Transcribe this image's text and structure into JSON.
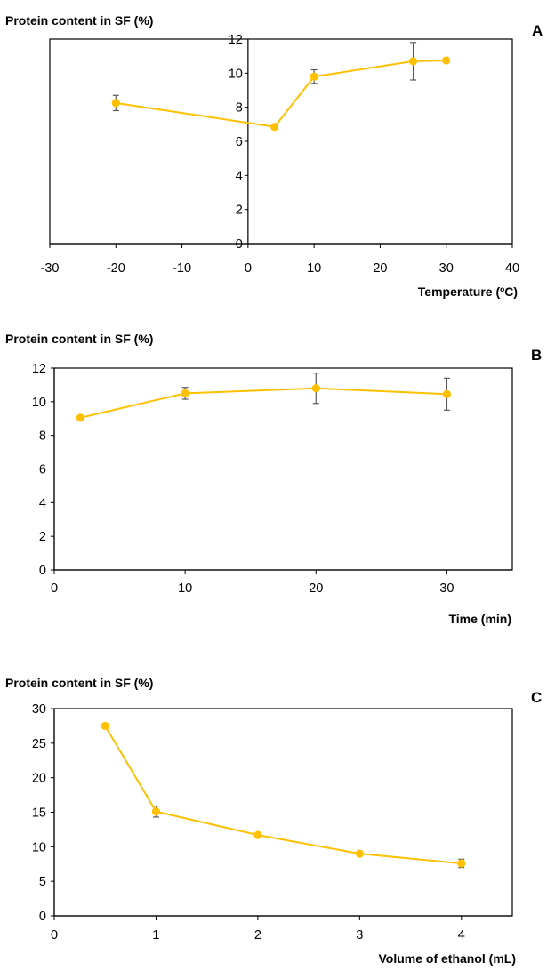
{
  "figure": {
    "background": "#ffffff",
    "series_color": "#ffc000",
    "axis_color": "#000000",
    "errorbar_color": "#595959"
  },
  "chart_data": [
    {
      "type": "line",
      "panel": "A",
      "ylabel": "Protein content in SF (%)",
      "xlabel": "Temperature (ºC)",
      "xlim": [
        -30,
        40
      ],
      "ylim": [
        0,
        12
      ],
      "x_ticks": [
        -30,
        -20,
        -10,
        0,
        10,
        20,
        30,
        40
      ],
      "y_ticks": [
        0,
        2,
        4,
        6,
        8,
        10,
        12
      ],
      "grid": false,
      "series": [
        {
          "x": [
            -20,
            4,
            10,
            25,
            30
          ],
          "y": [
            8.25,
            6.85,
            9.8,
            10.7,
            10.75
          ],
          "err": [
            0.45,
            0.1,
            0.4,
            1.1,
            0.1
          ]
        }
      ]
    },
    {
      "type": "line",
      "panel": "B",
      "ylabel": "Protein content in SF (%)",
      "xlabel": "Time (min)",
      "xlim": [
        0,
        35
      ],
      "ylim": [
        0,
        12
      ],
      "x_ticks": [
        0,
        10,
        20,
        30
      ],
      "y_ticks": [
        0,
        2,
        4,
        6,
        8,
        10,
        12
      ],
      "grid": false,
      "series": [
        {
          "x": [
            2,
            10,
            20,
            30
          ],
          "y": [
            9.05,
            10.5,
            10.8,
            10.45
          ],
          "err": [
            0.1,
            0.35,
            0.9,
            0.95
          ]
        }
      ]
    },
    {
      "type": "line",
      "panel": "C",
      "ylabel": "Protein content in SF (%)",
      "xlabel": "Volume of ethanol (mL)",
      "xlim": [
        0,
        4.5
      ],
      "ylim": [
        0,
        30
      ],
      "x_ticks": [
        0,
        1,
        2,
        3,
        4
      ],
      "y_ticks": [
        0,
        5,
        10,
        15,
        20,
        25,
        30
      ],
      "grid": false,
      "series": [
        {
          "x": [
            0.5,
            1,
            2,
            3,
            4
          ],
          "y": [
            27.5,
            15.1,
            11.7,
            9.0,
            7.6
          ],
          "err": [
            0.2,
            0.8,
            0.3,
            0.2,
            0.6
          ]
        }
      ]
    }
  ]
}
